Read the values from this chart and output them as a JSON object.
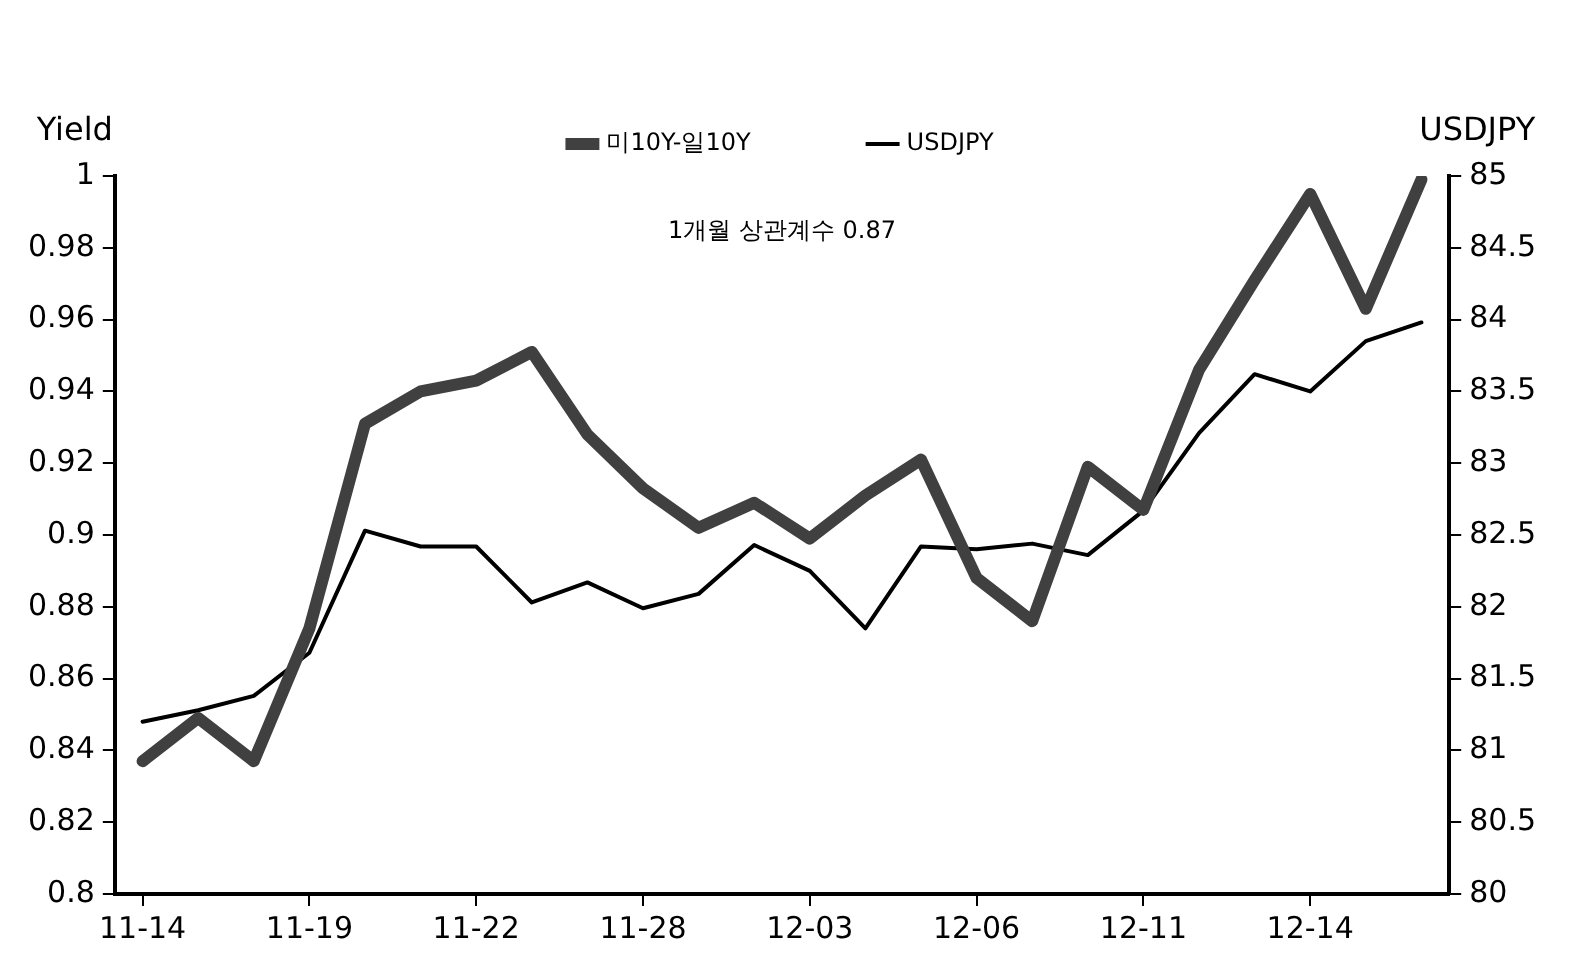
{
  "chart_data": {
    "type": "line",
    "categories": [
      "11-14",
      null,
      null,
      "11-19",
      null,
      null,
      "11-22",
      null,
      null,
      "11-28",
      null,
      null,
      "12-03",
      null,
      null,
      "12-06",
      null,
      null,
      "12-11",
      null,
      null,
      "12-14",
      null,
      null
    ],
    "series": [
      {
        "name": "미10Y-일10Y",
        "color": "#404040",
        "values": [
          0.837,
          0.849,
          0.837,
          0.874,
          0.931,
          0.94,
          0.943,
          0.951,
          0.928,
          0.913,
          0.902,
          0.909,
          0.899,
          0.911,
          0.921,
          0.888,
          0.876,
          0.919,
          0.907,
          0.946,
          0.971,
          0.995,
          0.963,
          0.999
        ]
      },
      {
        "name": "USDJPY",
        "color": "#000000",
        "axis": "y2",
        "values": [
          81.2,
          81.28,
          81.38,
          81.68,
          82.53,
          82.42,
          82.42,
          82.03,
          82.17,
          81.99,
          82.09,
          82.43,
          82.25,
          81.85,
          82.42,
          82.4,
          82.44,
          82.36,
          82.67,
          83.21,
          83.62,
          83.5,
          83.85,
          83.98
        ]
      }
    ],
    "ylabel": "Yield",
    "y2label": "USDJPY",
    "ylim": [
      0.8,
      1
    ],
    "yticks": [
      0.8,
      0.82,
      0.84,
      0.86,
      0.88,
      0.9,
      0.92,
      0.94,
      0.96,
      0.98,
      1
    ],
    "y2lim": [
      80,
      85
    ],
    "y2ticks": [
      80,
      80.5,
      81,
      81.5,
      82,
      82.5,
      83,
      83.5,
      84,
      84.5,
      85
    ],
    "annotations": [
      "1개월 상관계수 0.87"
    ],
    "legend": "top",
    "grid": false,
    "marker": "none",
    "line_style": "solid"
  }
}
